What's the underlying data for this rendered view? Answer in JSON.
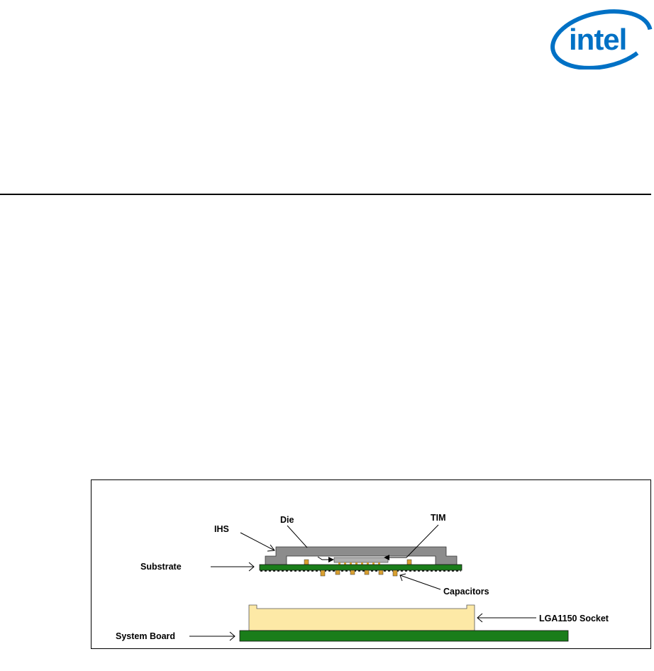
{
  "logo": {
    "text": "intel",
    "color": "#0071c5"
  },
  "figure": {
    "labels": {
      "ihs": "IHS",
      "die": "Die",
      "tim": "TIM",
      "substrate": "Substrate",
      "capacitors": "Capacitors",
      "socket": "LGA1150 Socket",
      "system_board": "System Board"
    },
    "colors": {
      "ihs": "#8c8c8c",
      "substrate": "#1a7d1a",
      "socket": "#fde9a6",
      "system_board": "#1a7d1a",
      "capacitor": "#d9a030"
    }
  }
}
